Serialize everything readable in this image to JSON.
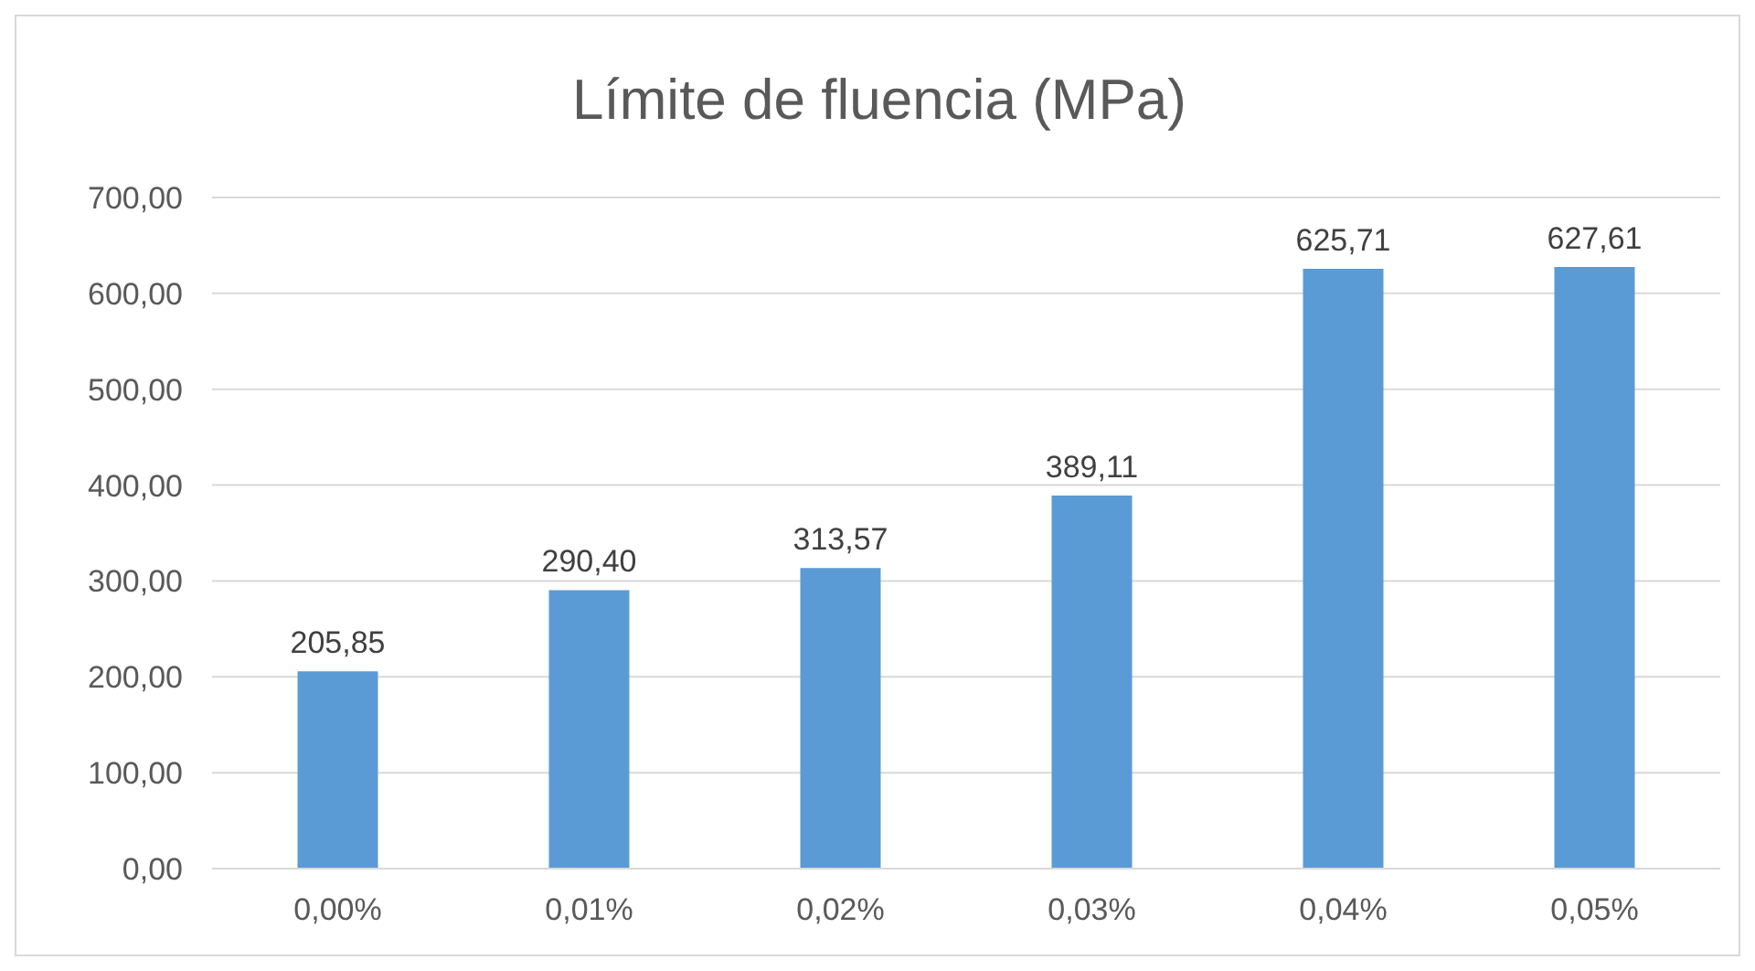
{
  "chart_data": {
    "type": "bar",
    "title": "Límite de fluencia (MPa)",
    "categories": [
      "0,00%",
      "0,01%",
      "0,02%",
      "0,03%",
      "0,04%",
      "0,05%"
    ],
    "values": [
      205.85,
      290.4,
      313.57,
      389.11,
      625.71,
      627.61
    ],
    "value_labels": [
      "205,85",
      "290,40",
      "313,57",
      "389,11",
      "625,71",
      "627,61"
    ],
    "color": "#5b9bd5",
    "ylim": [
      0,
      700
    ],
    "yticks": [
      {
        "value": 0,
        "label": "0,00"
      },
      {
        "value": 100,
        "label": "100,00"
      },
      {
        "value": 200,
        "label": "200,00"
      },
      {
        "value": 300,
        "label": "300,00"
      },
      {
        "value": 400,
        "label": "400,00"
      },
      {
        "value": 500,
        "label": "500,00"
      },
      {
        "value": 600,
        "label": "600,00"
      },
      {
        "value": 700,
        "label": "700,00"
      }
    ],
    "grid": "y",
    "legend": false
  }
}
